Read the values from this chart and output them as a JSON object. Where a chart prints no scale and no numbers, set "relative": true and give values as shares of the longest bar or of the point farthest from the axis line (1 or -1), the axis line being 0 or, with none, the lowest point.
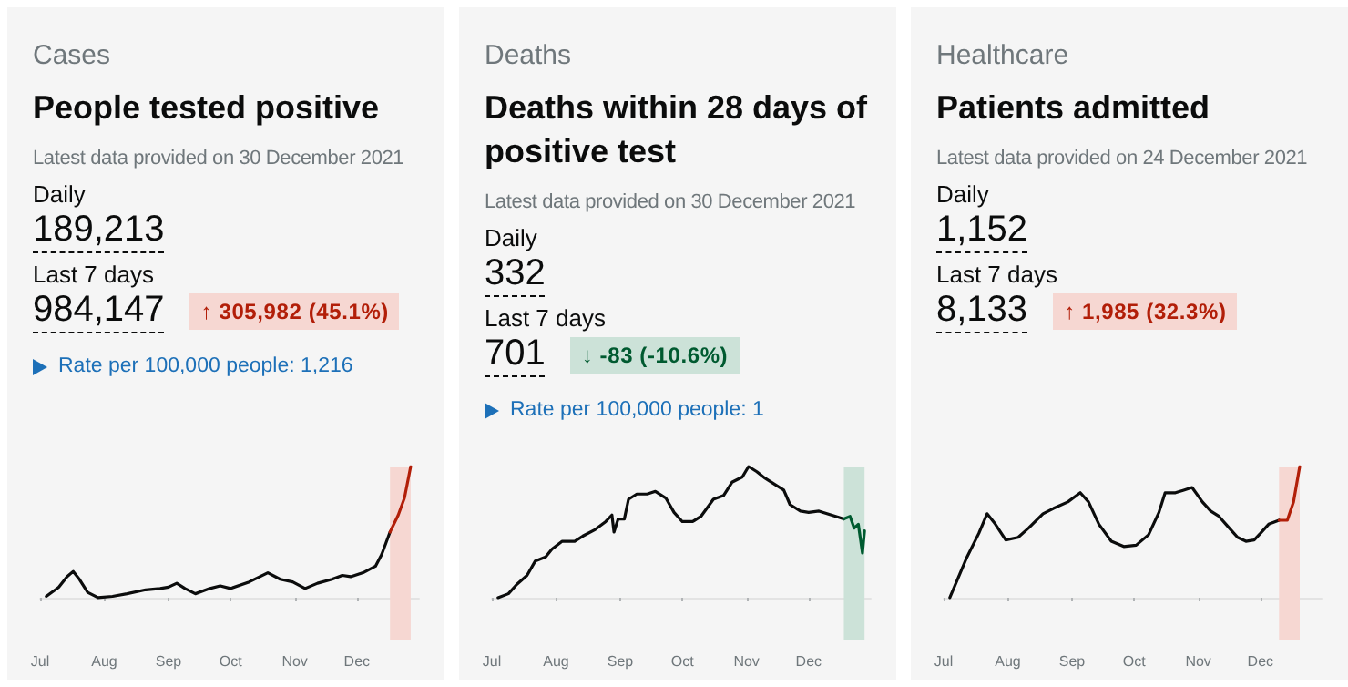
{
  "chart_data": [
    {
      "type": "line",
      "subtitle": "Cases",
      "title": "People tested positive",
      "relative": true,
      "marker": "none",
      "annotations": [
        "Latest data provided on 30 December 2021",
        "Daily",
        "189,213",
        "Last 7 days",
        "984,147",
        "↑ 305,982 (45.1%)",
        "Rate per 100,000 people: 1,216"
      ],
      "xlim": [
        "2021-07-01",
        "2021-12-31"
      ],
      "xticks": [
        {
          "value": "2021-07-01",
          "label": "Jul"
        },
        {
          "value": "2021-08-01",
          "label": "Aug"
        },
        {
          "value": "2021-09-01",
          "label": "Sep"
        },
        {
          "value": "2021-10-01",
          "label": "Oct"
        },
        {
          "value": "2021-11-01",
          "label": "Nov"
        },
        {
          "value": "2021-12-01",
          "label": "Dec"
        }
      ],
      "bands": [
        {
          "axis": "x",
          "from": "2021-12-17",
          "to": "2021-12-27",
          "color": "#f6d7d2"
        }
      ],
      "series": [
        {
          "color": "#0b0c0c",
          "x": [
            "2021-07-04",
            "2021-07-10",
            "2021-07-14",
            "2021-07-17",
            "2021-07-20",
            "2021-07-24",
            "2021-07-29",
            "2021-08-05",
            "2021-08-12",
            "2021-08-21",
            "2021-08-28",
            "2021-09-01",
            "2021-09-05",
            "2021-09-09",
            "2021-09-14",
            "2021-09-21",
            "2021-09-26",
            "2021-10-01",
            "2021-10-10",
            "2021-10-19",
            "2021-10-25",
            "2021-10-31",
            "2021-11-06",
            "2021-11-12",
            "2021-11-19",
            "2021-11-24",
            "2021-11-28",
            "2021-12-04",
            "2021-12-10",
            "2021-12-13",
            "2021-12-17"
          ],
          "values": [
            0.01,
            0.08,
            0.16,
            0.2,
            0.14,
            0.04,
            0,
            0.01,
            0.03,
            0.06,
            0.07,
            0.08,
            0.11,
            0.07,
            0.03,
            0.07,
            0.09,
            0.07,
            0.12,
            0.19,
            0.14,
            0.12,
            0.07,
            0.11,
            0.14,
            0.17,
            0.16,
            0.19,
            0.24,
            0.33,
            0.5
          ]
        },
        {
          "color": "#b21e08",
          "x": [
            "2021-12-17",
            "2021-12-21",
            "2021-12-24",
            "2021-12-27"
          ],
          "values": [
            0.5,
            0.63,
            0.76,
            1
          ]
        }
      ]
    },
    {
      "type": "line",
      "subtitle": "Deaths",
      "title": "Deaths within 28 days of positive test",
      "relative": true,
      "marker": "none",
      "annotations": [
        "Latest data provided on 30 December 2021",
        "Daily",
        "332",
        "Last 7 days",
        "701",
        "↓ -83 (-10.6%)",
        "Rate per 100,000 people: 1"
      ],
      "xlim": [
        "2021-07-01",
        "2021-12-31"
      ],
      "xticks": [
        {
          "value": "2021-07-01",
          "label": "Jul"
        },
        {
          "value": "2021-08-01",
          "label": "Aug"
        },
        {
          "value": "2021-09-01",
          "label": "Sep"
        },
        {
          "value": "2021-10-01",
          "label": "Oct"
        },
        {
          "value": "2021-11-01",
          "label": "Nov"
        },
        {
          "value": "2021-12-01",
          "label": "Dec"
        }
      ],
      "bands": [
        {
          "axis": "x",
          "from": "2021-12-18",
          "to": "2021-12-28",
          "color": "#cce2d8"
        }
      ],
      "series": [
        {
          "color": "#0b0c0c",
          "x": [
            "2021-07-04",
            "2021-07-09",
            "2021-07-13",
            "2021-07-18",
            "2021-07-22",
            "2021-07-27",
            "2021-07-30",
            "2021-08-04",
            "2021-08-10",
            "2021-08-14",
            "2021-08-20",
            "2021-08-25",
            "2021-08-28",
            "2021-08-29",
            "2021-08-31",
            "2021-09-03",
            "2021-09-05",
            "2021-09-09",
            "2021-09-14",
            "2021-09-18",
            "2021-09-23",
            "2021-09-27",
            "2021-10-01",
            "2021-10-06",
            "2021-10-10",
            "2021-10-16",
            "2021-10-21",
            "2021-10-25",
            "2021-10-30",
            "2021-11-02",
            "2021-11-06",
            "2021-11-10",
            "2021-11-15",
            "2021-11-19",
            "2021-11-22",
            "2021-11-27",
            "2021-12-01",
            "2021-12-06",
            "2021-12-12",
            "2021-12-18"
          ],
          "values": [
            0,
            0.03,
            0.1,
            0.17,
            0.28,
            0.31,
            0.37,
            0.43,
            0.43,
            0.47,
            0.52,
            0.58,
            0.63,
            0.5,
            0.6,
            0.6,
            0.75,
            0.79,
            0.79,
            0.81,
            0.76,
            0.65,
            0.58,
            0.58,
            0.62,
            0.75,
            0.78,
            0.88,
            0.92,
            1,
            0.96,
            0.91,
            0.86,
            0.82,
            0.71,
            0.66,
            0.65,
            0.66,
            0.63,
            0.6
          ]
        },
        {
          "color": "#005a30",
          "x": [
            "2021-12-18",
            "2021-12-21",
            "2021-12-23",
            "2021-12-25",
            "2021-12-27",
            "2021-12-28"
          ],
          "values": [
            0.6,
            0.62,
            0.53,
            0.56,
            0.34,
            0.51
          ]
        }
      ]
    },
    {
      "type": "line",
      "subtitle": "Healthcare",
      "title": "Patients admitted",
      "relative": true,
      "marker": "none",
      "annotations": [
        "Latest data provided on 24 December 2021",
        "Daily",
        "1,152",
        "Last 7 days",
        "8,133",
        "↑ 1,985 (32.3%)"
      ],
      "xlim": [
        "2021-07-01",
        "2021-12-31"
      ],
      "xticks": [
        {
          "value": "2021-07-01",
          "label": "Jul"
        },
        {
          "value": "2021-08-01",
          "label": "Aug"
        },
        {
          "value": "2021-09-01",
          "label": "Sep"
        },
        {
          "value": "2021-10-01",
          "label": "Oct"
        },
        {
          "value": "2021-11-01",
          "label": "Nov"
        },
        {
          "value": "2021-12-01",
          "label": "Dec"
        }
      ],
      "bands": [
        {
          "axis": "x",
          "from": "2021-12-10",
          "to": "2021-12-20",
          "color": "#f6d7d2"
        }
      ],
      "series": [
        {
          "color": "#0b0c0c",
          "x": [
            "2021-07-04",
            "2021-07-12",
            "2021-07-18",
            "2021-07-22",
            "2021-07-26",
            "2021-07-31",
            "2021-08-06",
            "2021-08-11",
            "2021-08-18",
            "2021-08-23",
            "2021-08-30",
            "2021-09-05",
            "2021-09-09",
            "2021-09-14",
            "2021-09-20",
            "2021-09-26",
            "2021-10-02",
            "2021-10-08",
            "2021-10-13",
            "2021-10-16",
            "2021-10-21",
            "2021-10-25",
            "2021-10-29",
            "2021-11-03",
            "2021-11-07",
            "2021-11-11",
            "2021-11-16",
            "2021-11-20",
            "2021-11-24",
            "2021-11-28",
            "2021-12-01",
            "2021-12-05",
            "2021-12-10"
          ],
          "values": [
            0,
            0.3,
            0.49,
            0.64,
            0.56,
            0.44,
            0.46,
            0.53,
            0.64,
            0.68,
            0.73,
            0.8,
            0.73,
            0.56,
            0.43,
            0.39,
            0.4,
            0.48,
            0.65,
            0.8,
            0.8,
            0.82,
            0.84,
            0.73,
            0.66,
            0.62,
            0.53,
            0.46,
            0.43,
            0.44,
            0.49,
            0.56,
            0.59
          ]
        },
        {
          "color": "#b21e08",
          "x": [
            "2021-12-10",
            "2021-12-14",
            "2021-12-17",
            "2021-12-20"
          ],
          "values": [
            0.59,
            0.59,
            0.73,
            1
          ]
        }
      ]
    }
  ]
}
